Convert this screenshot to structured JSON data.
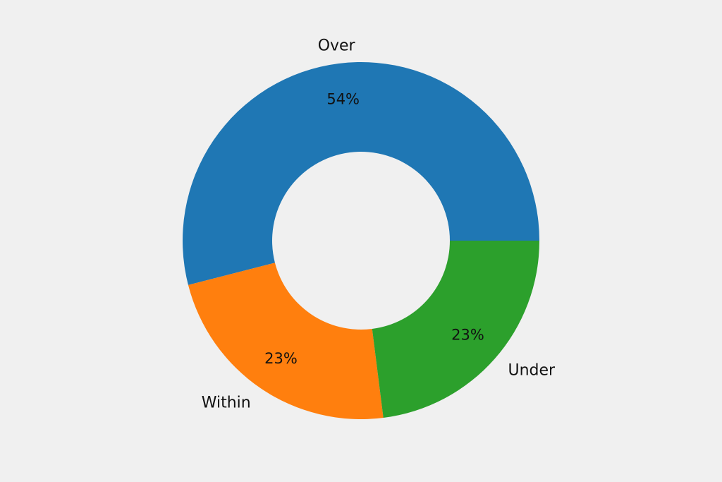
{
  "chart_data": {
    "type": "pie",
    "donut": true,
    "title": "",
    "start_direction": "counterclockwise from 0 degrees (east)",
    "slices": [
      {
        "label": "Over",
        "pct_label": "54%",
        "value": 54,
        "color": "#1f77b4"
      },
      {
        "label": "Within",
        "pct_label": "23%",
        "value": 23,
        "color": "#ff7f0e"
      },
      {
        "label": "Under",
        "pct_label": "23%",
        "value": 23,
        "color": "#2ca02c"
      }
    ]
  },
  "colors": {
    "background": "#f0f0f0",
    "text": "#111111"
  }
}
